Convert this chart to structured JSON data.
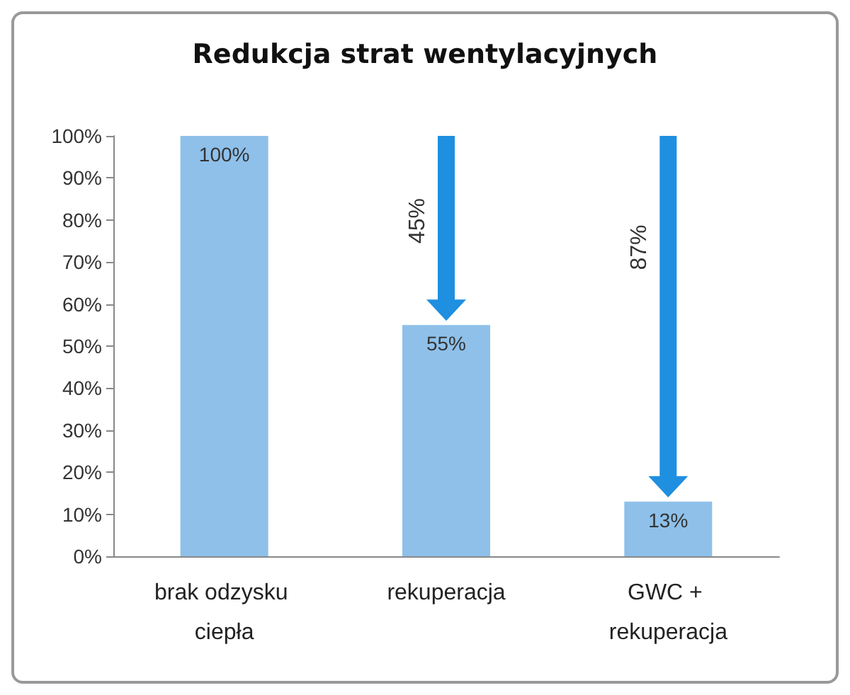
{
  "chart_data": {
    "type": "bar",
    "title": "Redukcja strat wentylacyjnych",
    "categories": [
      "brak odzysku ciepła",
      "rekuperacja",
      "GWC + rekuperacja"
    ],
    "values": [
      100,
      55,
      13
    ],
    "color": "#8ec0ea",
    "value_labels": [
      "100%",
      "55%",
      "13%"
    ],
    "ylim": [
      0,
      100
    ],
    "yticks": [
      {
        "value": 0,
        "label": "0%"
      },
      {
        "value": 10,
        "label": "10%"
      },
      {
        "value": 20,
        "label": "20%"
      },
      {
        "value": 30,
        "label": "30%"
      },
      {
        "value": 40,
        "label": "40%"
      },
      {
        "value": 50,
        "label": "50%"
      },
      {
        "value": 60,
        "label": "60%"
      },
      {
        "value": 70,
        "label": "70%"
      },
      {
        "value": 80,
        "label": "80%"
      },
      {
        "value": 90,
        "label": "90%"
      },
      {
        "value": 100,
        "label": "100%"
      }
    ],
    "annotations": [
      "45%",
      "87%"
    ],
    "grid": false
  }
}
